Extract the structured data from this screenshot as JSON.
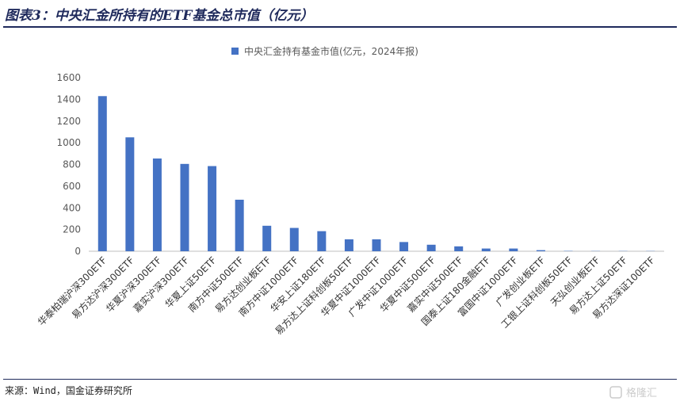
{
  "header": {
    "title": "图表3：中央汇金所持有的ETF基金总市值（亿元）"
  },
  "footer": {
    "source": "来源：Wind，国金证券研究所"
  },
  "watermark": {
    "text": "格隆汇"
  },
  "colors": {
    "bar": "#4472c4",
    "title": "#1f2a5c",
    "axis": "#bfbfbf",
    "text": "#595959"
  },
  "chart_data": {
    "type": "bar",
    "title": "",
    "xlabel": "",
    "ylabel": "",
    "ylim": [
      0,
      1600
    ],
    "yticks": [
      0,
      200,
      400,
      600,
      800,
      1000,
      1200,
      1400,
      1600
    ],
    "grid": false,
    "legend": "top-center",
    "categories": [
      "华泰柏瑞沪深300ETF",
      "易方达沪深300ETF",
      "华夏沪深300ETF",
      "嘉实沪深300ETF",
      "华夏上证50ETF",
      "南方中证500ETF",
      "易方达创业板ETF",
      "南方中证1000ETF",
      "华安上证180ETF",
      "易方达上证科创板50ETF",
      "华夏中证1000ETF",
      "广发中证1000ETF",
      "华夏中证500ETF",
      "嘉实中证500ETF",
      "国泰上证180金融ETF",
      "富国中证1000ETF",
      "广发创业板ETF",
      "工银上证科创板50ETF",
      "天弘创业板ETF",
      "易方达上证50ETF",
      "易方达深证100ETF"
    ],
    "series": [
      {
        "name": "中央汇金持有基金市值(亿元，2024年报)",
        "values": [
          1430,
          1050,
          855,
          805,
          785,
          475,
          235,
          215,
          185,
          110,
          110,
          85,
          60,
          45,
          25,
          25,
          10,
          3,
          2,
          2,
          2
        ]
      }
    ]
  }
}
